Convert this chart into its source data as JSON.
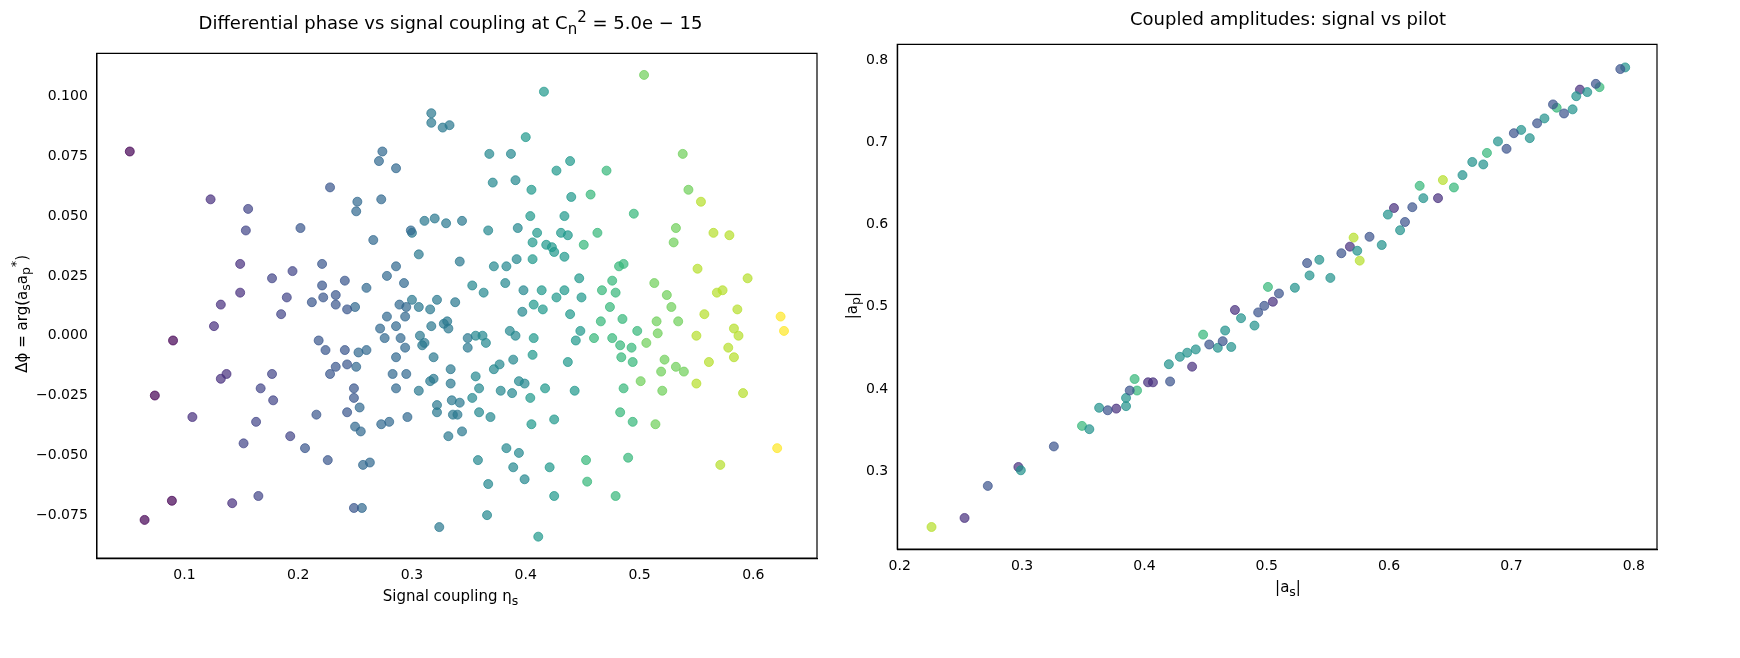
{
  "chart_data": [
    {
      "type": "scatter",
      "title": "Differential phase vs signal coupling at C$_{n}$$^{2}$ = 5.0e − 15",
      "xlabel": "Signal coupling η$_{s}$",
      "ylabel": "Δϕ = arg(a$_{s}$a$_{p}$$^{*}$)",
      "xlim": [
        0.023,
        0.656
      ],
      "ylim": [
        -0.093,
        0.118
      ],
      "xticks": [
        0.1,
        0.2,
        0.3,
        0.4,
        0.5,
        0.6
      ],
      "yticks": [
        {
          "value": -0.075,
          "label": "−0.075"
        },
        {
          "value": -0.05,
          "label": "−0.050"
        },
        {
          "value": -0.025,
          "label": "−0.025"
        },
        {
          "value": 0,
          "label": "0.000"
        },
        {
          "value": 0.025,
          "label": "0.025"
        },
        {
          "value": 0.05,
          "label": "0.050"
        },
        {
          "value": 0.075,
          "label": "0.075"
        },
        {
          "value": 0.1,
          "label": "0.100"
        }
      ],
      "grid": false,
      "legend": false,
      "marker": "circle",
      "series": [
        {
          "color": "#440154",
          "x": [
            0.052,
            0.065,
            0.074,
            0.09,
            0.089
          ],
          "values": [
            0.077,
            -0.077,
            -0.025,
            -0.002,
            -0.069
          ]
        },
        {
          "color": "#472f7d",
          "x": [
            0.107,
            0.123,
            0.126,
            0.132,
            0.132,
            0.137,
            0.142,
            0.149,
            0.149
          ],
          "values": [
            -0.034,
            0.057,
            0.004,
            0.013,
            -0.018,
            -0.016,
            -0.07,
            0.03,
            0.018
          ]
        },
        {
          "color": "#414487",
          "x": [
            0.152,
            0.154,
            0.156,
            0.163,
            0.165,
            0.167,
            0.177,
            0.177,
            0.178,
            0.185,
            0.19,
            0.193,
            0.195
          ],
          "values": [
            -0.045,
            0.044,
            0.053,
            -0.036,
            -0.067,
            -0.022,
            0.024,
            -0.016,
            -0.027,
            0.009,
            0.016,
            -0.042,
            0.027
          ]
        },
        {
          "color": "#39568c",
          "x": [
            0.202,
            0.206,
            0.212,
            0.216,
            0.218,
            0.221,
            0.221,
            0.222,
            0.224,
            0.226,
            0.228,
            0.228,
            0.233,
            0.233,
            0.233,
            0.241,
            0.241,
            0.243,
            0.243,
            0.243,
            0.249,
            0.249,
            0.249
          ],
          "values": [
            0.045,
            -0.047,
            0.014,
            -0.033,
            -0.002,
            0.03,
            0.021,
            0.016,
            -0.006,
            -0.052,
            0.062,
            -0.016,
            -0.013,
            0.017,
            0.013,
            -0.006,
            0.023,
            0.011,
            -0.012,
            -0.032,
            -0.022,
            -0.026,
            -0.072
          ]
        },
        {
          "color": "#31688e",
          "x": [
            0.25,
            0.251,
            0.25,
            0.251,
            0.252,
            0.253,
            0.254,
            0.255,
            0.256,
            0.257,
            0.26,
            0.26,
            0.263,
            0.266,
            0.272,
            0.271,
            0.274,
            0.273,
            0.273,
            0.276,
            0.278,
            0.278,
            0.28,
            0.283,
            0.286,
            0.286,
            0.286,
            0.286,
            0.286,
            0.289,
            0.29,
            0.293,
            0.294,
            0.294,
            0.295,
            0.295,
            0.296,
            0.299
          ],
          "values": [
            -0.038,
            -0.013,
            0.012,
            0.052,
            0.056,
            -0.007,
            -0.03,
            -0.04,
            -0.072,
            -0.054,
            0.02,
            -0.006,
            -0.053,
            0.04,
            0.003,
            0.073,
            0.077,
            0.057,
            -0.037,
            -0.001,
            0.008,
            0.025,
            -0.036,
            -0.016,
            -0.022,
            0.07,
            0.029,
            -0.009,
            0.004,
            0.013,
            -0.001,
            0.022,
            0.008,
            -0.005,
            0.012,
            -0.016,
            -0.034,
            0.044
          ]
        },
        {
          "color": "#2a788e",
          "x": [
            0.3,
            0.3,
            0.306,
            0.306,
            0.306,
            0.307,
            0.309,
            0.311,
            0.311,
            0.316,
            0.317,
            0.317,
            0.317,
            0.319,
            0.32,
            0.322,
            0.316,
            0.319,
            0.322,
            0.322,
            0.324,
            0.327,
            0.328,
            0.331,
            0.33,
            0.332,
            0.332,
            0.333,
            0.334,
            0.334,
            0.335,
            0.336,
            0.338,
            0.34,
            0.342,
            0.342,
            0.344,
            0.344,
            0.349,
            0.349
          ],
          "values": [
            0.015,
            0.043,
            0.034,
            0.012,
            -0.023,
            0.0,
            -0.004,
            0.048,
            -0.003,
            0.011,
            0.004,
            0.093,
            0.089,
            -0.009,
            0.049,
            0.015,
            -0.019,
            -0.018,
            -0.029,
            -0.032,
            -0.08,
            0.087,
            0.005,
            0.006,
            0.047,
            0.003,
            -0.042,
            0.088,
            -0.014,
            -0.02,
            -0.027,
            -0.033,
            0.014,
            -0.033,
            -0.028,
            0.031,
            0.048,
            -0.04,
            -0.005,
            -0.001
          ]
        },
        {
          "color": "#23888e",
          "x": [
            0.353,
            0.353,
            0.356,
            0.356,
            0.358,
            0.359,
            0.359,
            0.362,
            0.363,
            0.365,
            0.366,
            0.367,
            0.367,
            0.368,
            0.369,
            0.371,
            0.372,
            0.372,
            0.377,
            0.378,
            0.382,
            0.383,
            0.383,
            0.386,
            0.387,
            0.388,
            0.389,
            0.389,
            0.391,
            0.391,
            0.392,
            0.393,
            0.394,
            0.394,
            0.397,
            0.398,
            0.399,
            0.399
          ],
          "values": [
            0.021,
            -0.026,
            -0.017,
            0.0,
            -0.052,
            -0.022,
            -0.032,
            0.0,
            0.018,
            -0.003,
            -0.075,
            -0.062,
            0.044,
            0.076,
            -0.034,
            0.064,
            -0.014,
            0.029,
            -0.012,
            -0.023,
            0.022,
            0.029,
            -0.047,
            0.002,
            0.076,
            -0.024,
            -0.01,
            -0.055,
            0.065,
            0.0,
            0.032,
            0.045,
            -0.019,
            -0.049,
            0.01,
            0.019,
            -0.02,
            -0.06
          ]
        },
        {
          "color": "#1f988b",
          "x": [
            0.4,
            0.404,
            0.404,
            0.405,
            0.405,
            0.406,
            0.406,
            0.406,
            0.407,
            0.407,
            0.41,
            0.411,
            0.414,
            0.415,
            0.416,
            0.417,
            0.418,
            0.421,
            0.423,
            0.425,
            0.425,
            0.425,
            0.427,
            0.427,
            0.431,
            0.434,
            0.434,
            0.434,
            0.437,
            0.437,
            0.439,
            0.439,
            0.44,
            0.443,
            0.444,
            0.447,
            0.448,
            0.449
          ],
          "values": [
            0.083,
            0.05,
            -0.026,
            -0.037,
            0.061,
            0.032,
            -0.008,
            0.039,
            -0.001,
            0.013,
            0.043,
            -0.084,
            0.019,
            0.011,
            0.102,
            -0.022,
            0.038,
            -0.055,
            0.037,
            0.035,
            -0.035,
            -0.067,
            0.016,
            0.069,
            0.043,
            0.019,
            0.05,
            0.033,
            0.042,
            -0.011,
            0.009,
            0.073,
            0.058,
            -0.023,
            -0.002,
            0.024,
            0.002,
            0.016
          ]
        },
        {
          "color": "#35b779",
          "x": [
            0.451,
            0.453,
            0.454,
            0.457,
            0.46,
            0.463,
            0.466,
            0.467,
            0.471,
            0.474,
            0.476,
            0.476,
            0.479,
            0.479,
            0.482,
            0.483,
            0.483,
            0.484,
            0.485,
            0.486,
            0.486,
            0.49,
            0.493,
            0.494,
            0.494,
            0.495,
            0.498
          ],
          "values": [
            0.038,
            -0.052,
            -0.061,
            0.059,
            -0.001,
            0.043,
            0.006,
            0.019,
            0.069,
            0.012,
            -0.001,
            0.023,
            -0.067,
            0.018,
            0.029,
            -0.032,
            -0.004,
            -0.009,
            0.007,
            -0.022,
            0.03,
            -0.051,
            -0.005,
            -0.011,
            -0.036,
            0.051,
            0.002
          ]
        },
        {
          "color": "#6ece58",
          "x": [
            0.501,
            0.504,
            0.506,
            0.513,
            0.514,
            0.515,
            0.516,
            0.519,
            0.52,
            0.522,
            0.524,
            0.528,
            0.53,
            0.532,
            0.532,
            0.534,
            0.538,
            0.539,
            0.543
          ],
          "values": [
            -0.019,
            0.109,
            -0.003,
            0.022,
            -0.037,
            0.006,
            0.001,
            -0.015,
            -0.023,
            -0.01,
            0.017,
            0.012,
            0.039,
            0.045,
            -0.013,
            0.006,
            0.076,
            -0.015,
            0.061
          ]
        },
        {
          "color": "#b5de2b",
          "x": [
            0.55,
            0.55,
            0.551,
            0.554,
            0.557,
            0.561,
            0.565,
            0.568,
            0.571,
            0.573,
            0.578,
            0.579,
            0.583,
            0.583,
            0.586,
            0.587,
            0.591,
            0.595
          ],
          "values": [
            -0.02,
            0.0,
            0.028,
            0.056,
            0.009,
            -0.011,
            0.043,
            0.018,
            -0.054,
            0.019,
            -0.005,
            0.042,
            -0.009,
            0.003,
            0.011,
            0.0,
            -0.024,
            0.024
          ]
        },
        {
          "color": "#fde725",
          "x": [
            0.621,
            0.624,
            0.627
          ],
          "values": [
            -0.047,
            0.008,
            0.002
          ]
        }
      ]
    },
    {
      "type": "scatter",
      "title": "Coupled amplitudes: signal vs pilot",
      "xlabel": "|a$_{s}$|",
      "ylabel": "|a$_{p}$|",
      "xlim": [
        0.198,
        0.819
      ],
      "ylim": [
        0.205,
        0.819
      ],
      "xticks": [
        0.2,
        0.3,
        0.4,
        0.5,
        0.6,
        0.7,
        0.8
      ],
      "yticks": [
        0.3,
        0.4,
        0.5,
        0.6,
        0.7,
        0.8
      ],
      "grid": false,
      "legend": false,
      "marker": "circle",
      "series": [
        {
          "color": "#3b528b",
          "x": [
            0.272,
            0.326,
            0.37,
            0.388,
            0.421,
            0.453,
            0.464,
            0.493,
            0.498,
            0.51,
            0.533,
            0.561,
            0.584,
            0.613,
            0.619,
            0.696,
            0.702,
            0.721,
            0.734,
            0.743,
            0.769,
            0.789
          ],
          "values": [
            0.282,
            0.33,
            0.374,
            0.398,
            0.409,
            0.454,
            0.458,
            0.493,
            0.501,
            0.516,
            0.553,
            0.565,
            0.585,
            0.603,
            0.621,
            0.692,
            0.711,
            0.723,
            0.746,
            0.735,
            0.771,
            0.789
          ]
        },
        {
          "color": "#21918c",
          "x": [
            0.299,
            0.355,
            0.363,
            0.385,
            0.385,
            0.42,
            0.429,
            0.435,
            0.442,
            0.46,
            0.466,
            0.471,
            0.479,
            0.49,
            0.523,
            0.535,
            0.543,
            0.552,
            0.574,
            0.594,
            0.599,
            0.609,
            0.628,
            0.66,
            0.668,
            0.677,
            0.689,
            0.708,
            0.715,
            0.727,
            0.75,
            0.753,
            0.762,
            0.793
          ],
          "values": [
            0.301,
            0.351,
            0.377,
            0.379,
            0.389,
            0.43,
            0.439,
            0.444,
            0.448,
            0.45,
            0.471,
            0.451,
            0.486,
            0.477,
            0.523,
            0.538,
            0.557,
            0.535,
            0.568,
            0.575,
            0.612,
            0.593,
            0.632,
            0.66,
            0.676,
            0.673,
            0.701,
            0.715,
            0.705,
            0.729,
            0.74,
            0.756,
            0.761,
            0.791
          ]
        },
        {
          "color": "#35b779",
          "x": [
            0.349,
            0.392,
            0.394,
            0.448,
            0.501,
            0.625,
            0.653,
            0.68,
            0.737,
            0.772
          ],
          "values": [
            0.355,
            0.412,
            0.398,
            0.466,
            0.524,
            0.647,
            0.645,
            0.687,
            0.742,
            0.767
          ]
        },
        {
          "color": "#472f7d",
          "x": [
            0.253,
            0.297,
            0.377,
            0.403,
            0.407,
            0.439,
            0.474,
            0.505,
            0.568,
            0.604,
            0.64,
            0.756
          ],
          "values": [
            0.243,
            0.305,
            0.376,
            0.408,
            0.408,
            0.427,
            0.496,
            0.506,
            0.573,
            0.62,
            0.632,
            0.764
          ]
        },
        {
          "color": "#b5de2b",
          "x": [
            0.226,
            0.571,
            0.576,
            0.644
          ],
          "values": [
            0.232,
            0.584,
            0.556,
            0.654
          ]
        }
      ]
    }
  ]
}
